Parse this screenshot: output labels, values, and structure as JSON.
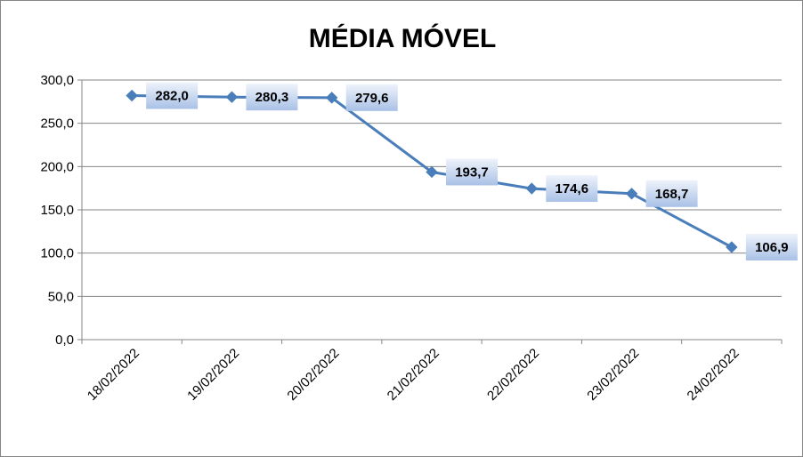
{
  "chart_data": {
    "type": "line",
    "title": "MÉDIA MÓVEL",
    "categories": [
      "18/02/2022",
      "19/02/2022",
      "20/02/2022",
      "21/02/2022",
      "22/02/2022",
      "23/02/2022",
      "24/02/2022"
    ],
    "series": [
      {
        "values": [
          282.0,
          280.3,
          279.6,
          193.7,
          174.6,
          168.7,
          106.9
        ]
      }
    ],
    "data_labels": [
      "282,0",
      "280,3",
      "279,6",
      "193,7",
      "174,6",
      "168,7",
      "106,9"
    ],
    "y_ticks": [
      "0,0",
      "50,0",
      "100,0",
      "150,0",
      "200,0",
      "250,0",
      "300,0"
    ],
    "ylim": [
      0,
      300
    ],
    "grid": true,
    "legend": "none",
    "colors": {
      "line": "#4a7ebb",
      "marker": "#4a7ebb",
      "grid": "#868686",
      "label_bg_top": "#eef3fb",
      "label_bg_bottom": "#a9c1e6"
    }
  }
}
